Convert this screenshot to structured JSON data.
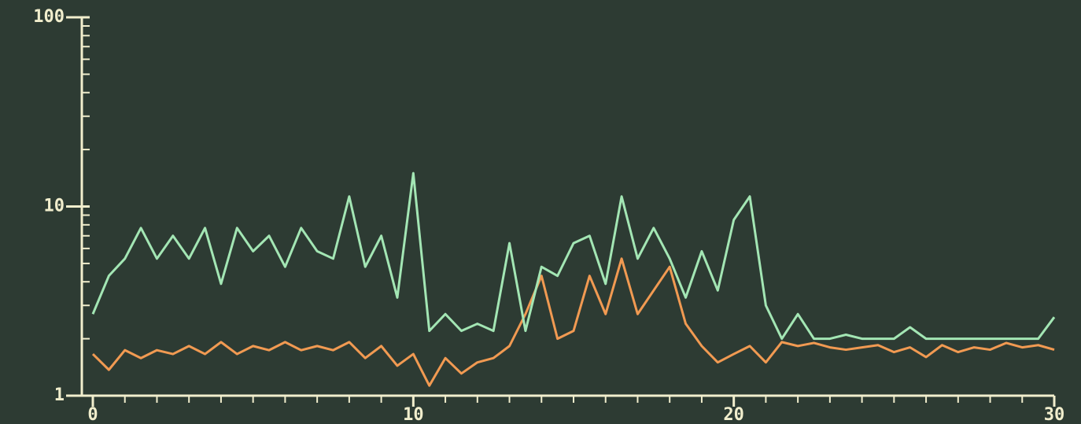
{
  "chart_data": {
    "type": "line",
    "log_y": true,
    "background": "#2d3b33",
    "axis_color": "#f1eecd",
    "x": [
      0,
      0.5,
      1,
      1.5,
      2,
      2.5,
      3,
      3.5,
      4,
      4.5,
      5,
      5.5,
      6,
      6.5,
      7,
      7.5,
      8,
      8.5,
      9,
      9.5,
      10,
      10.5,
      11,
      11.5,
      12,
      12.5,
      13,
      13.5,
      14,
      14.5,
      15,
      15.5,
      16,
      16.5,
      17,
      17.5,
      18,
      18.5,
      19,
      19.5,
      20,
      20.5,
      21,
      21.5,
      22,
      22.5,
      23,
      23.5,
      24,
      24.5,
      25,
      25.5,
      26,
      26.5,
      27,
      27.5,
      28,
      28.5,
      29,
      29.5,
      30
    ],
    "series": [
      {
        "color": "#a3e6b4",
        "values": [
          2.7,
          4.3,
          5.3,
          7.7,
          5.3,
          7.0,
          5.3,
          7.7,
          3.9,
          7.7,
          5.8,
          7.0,
          4.8,
          7.7,
          5.8,
          5.3,
          11.3,
          4.8,
          7.0,
          3.3,
          15,
          2.2,
          2.7,
          2.2,
          2.4,
          2.2,
          6.4,
          2.2,
          4.8,
          4.3,
          6.4,
          7.0,
          3.9,
          11.3,
          5.3,
          7.7,
          5.3,
          3.3,
          5.8,
          3.6,
          8.5,
          11.3,
          3.0,
          2.0,
          2.7,
          2.0,
          2.0,
          2.1,
          2.0,
          2.0,
          2.0,
          2.3,
          2.0,
          2.0,
          2.0,
          2.0,
          2.0,
          2.0,
          2.0,
          2.0,
          2.6
        ]
      },
      {
        "color": "#f19a52",
        "values": [
          1.66,
          1.37,
          1.74,
          1.58,
          1.74,
          1.66,
          1.83,
          1.66,
          1.92,
          1.66,
          1.83,
          1.74,
          1.92,
          1.74,
          1.83,
          1.74,
          1.92,
          1.58,
          1.83,
          1.44,
          1.66,
          1.13,
          1.58,
          1.31,
          1.5,
          1.58,
          1.83,
          2.7,
          4.3,
          2.0,
          2.2,
          4.3,
          2.7,
          5.3,
          2.7,
          3.6,
          4.8,
          2.4,
          1.83,
          1.5,
          1.66,
          1.83,
          1.5,
          1.92,
          1.83,
          1.9,
          1.8,
          1.75,
          1.8,
          1.85,
          1.7,
          1.8,
          1.6,
          1.85,
          1.7,
          1.8,
          1.75,
          1.9,
          1.8,
          1.85,
          1.75
        ]
      }
    ],
    "xlim": [
      0,
      30
    ],
    "ylim": [
      1,
      100
    ],
    "xticks": [
      0,
      10,
      20,
      30
    ],
    "yticks": [
      1,
      10,
      100
    ],
    "x_minor_ticks": [
      1,
      2,
      3,
      4,
      5,
      6,
      7,
      8,
      9,
      11,
      12,
      13,
      14,
      15,
      16,
      17,
      18,
      19,
      21,
      22,
      23,
      24,
      25,
      26,
      27,
      28,
      29
    ],
    "y_minor_ticks": [
      2,
      3,
      4,
      5,
      6,
      7,
      8,
      9,
      20,
      30,
      40,
      50,
      60,
      70,
      80,
      90
    ]
  }
}
